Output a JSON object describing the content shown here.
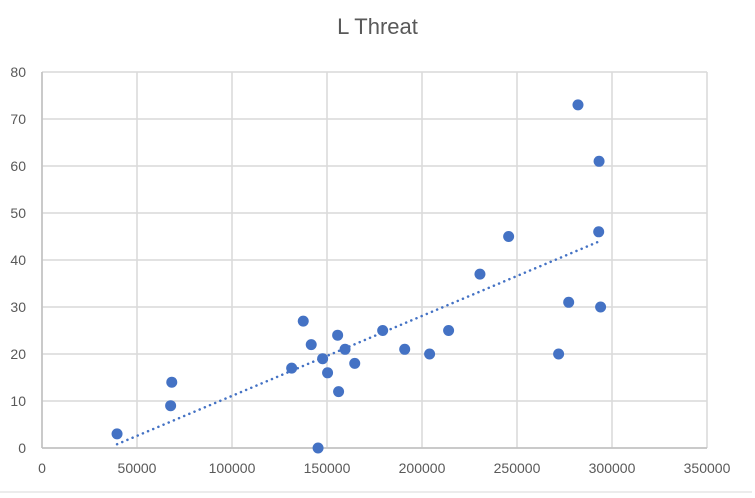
{
  "chart_data": {
    "type": "scatter",
    "title": "L Threat",
    "xlabel": "",
    "ylabel": "",
    "xlim": [
      0,
      350000
    ],
    "ylim": [
      0,
      80
    ],
    "x_ticks": [
      0,
      50000,
      100000,
      150000,
      200000,
      250000,
      300000,
      350000
    ],
    "x_tick_labels": [
      "0",
      "50000",
      "100000",
      "150000",
      "200000",
      "250000",
      "300000",
      "350000"
    ],
    "y_ticks": [
      0,
      10,
      20,
      30,
      40,
      50,
      60,
      70,
      80
    ],
    "y_tick_labels": [
      "0",
      "10",
      "20",
      "30",
      "40",
      "50",
      "60",
      "70",
      "80"
    ],
    "grid": true,
    "legend": null,
    "series": [
      {
        "name": "L Threat",
        "marker_color": "#4472C4",
        "points": [
          {
            "x": 39500,
            "y": 3
          },
          {
            "x": 67700,
            "y": 9
          },
          {
            "x": 68300,
            "y": 14
          },
          {
            "x": 131400,
            "y": 17
          },
          {
            "x": 137500,
            "y": 27
          },
          {
            "x": 141700,
            "y": 22
          },
          {
            "x": 145300,
            "y": 0
          },
          {
            "x": 147700,
            "y": 19
          },
          {
            "x": 150300,
            "y": 16
          },
          {
            "x": 155600,
            "y": 24
          },
          {
            "x": 156100,
            "y": 12
          },
          {
            "x": 159500,
            "y": 21
          },
          {
            "x": 164600,
            "y": 18
          },
          {
            "x": 179300,
            "y": 25
          },
          {
            "x": 190900,
            "y": 21
          },
          {
            "x": 204000,
            "y": 20
          },
          {
            "x": 214000,
            "y": 25
          },
          {
            "x": 230500,
            "y": 37
          },
          {
            "x": 245600,
            "y": 45
          },
          {
            "x": 271900,
            "y": 20
          },
          {
            "x": 277200,
            "y": 31
          },
          {
            "x": 282100,
            "y": 73
          },
          {
            "x": 293000,
            "y": 46
          },
          {
            "x": 293200,
            "y": 61
          },
          {
            "x": 294000,
            "y": 30
          }
        ]
      }
    ],
    "trendline": {
      "type": "linear",
      "style": "dotted",
      "color": "#4472C4",
      "start": {
        "x": 39500,
        "y": 0.8
      },
      "end": {
        "x": 293500,
        "y": 44
      }
    }
  },
  "colors": {
    "gridline": "#D9D9D9",
    "axis_text": "#595959",
    "marker": "#4472C4"
  }
}
